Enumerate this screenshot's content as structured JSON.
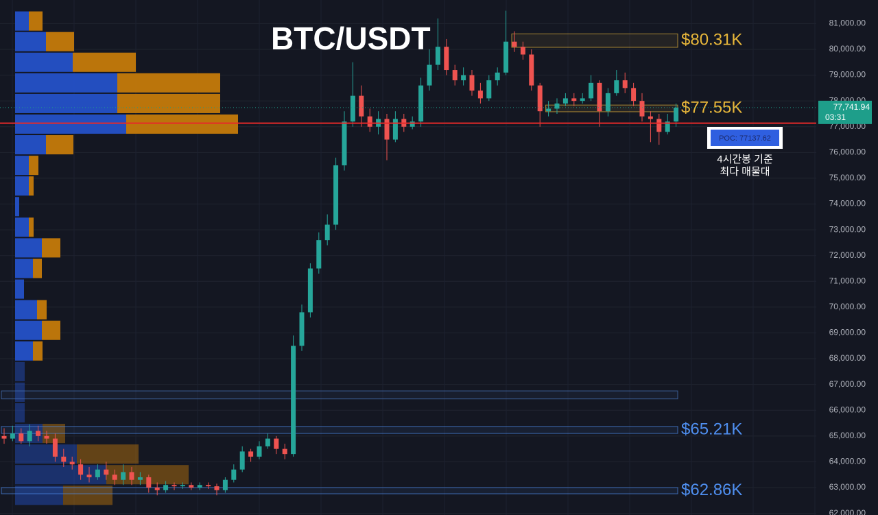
{
  "chart_data": {
    "type": "candlestick",
    "title": "BTC/USDT",
    "ylim": [
      61936,
      81915
    ],
    "yticks": [
      {
        "value": 62000,
        "label": "62,000.00"
      },
      {
        "value": 63000,
        "label": "63,000.00"
      },
      {
        "value": 64000,
        "label": "64,000.00"
      },
      {
        "value": 65000,
        "label": "65,000.00"
      },
      {
        "value": 66000,
        "label": "66,000.00"
      },
      {
        "value": 67000,
        "label": "67,000.00"
      },
      {
        "value": 68000,
        "label": "68,000.00"
      },
      {
        "value": 69000,
        "label": "69,000.00"
      },
      {
        "value": 70000,
        "label": "70,000.00"
      },
      {
        "value": 71000,
        "label": "71,000.00"
      },
      {
        "value": 72000,
        "label": "72,000.00"
      },
      {
        "value": 73000,
        "label": "73,000.00"
      },
      {
        "value": 74000,
        "label": "74,000.00"
      },
      {
        "value": 75000,
        "label": "75,000.00"
      },
      {
        "value": 76000,
        "label": "76,000.00"
      },
      {
        "value": 77000,
        "label": "77,000.00"
      },
      {
        "value": 78000,
        "label": "78,000.00"
      },
      {
        "value": 79000,
        "label": "79,000.00"
      },
      {
        "value": 80000,
        "label": "80,000.00"
      },
      {
        "value": 81000,
        "label": "81,000.00"
      }
    ],
    "up_color": "#26a69a",
    "down_color": "#ef5350",
    "open": [
      65000,
      64900,
      65100,
      64800,
      65200,
      65000,
      64900,
      64200,
      64000,
      63900,
      63500,
      63400,
      63700,
      63500,
      63300,
      63600,
      63300,
      63400,
      63000,
      62900,
      63100,
      63050,
      63100,
      63000,
      63100,
      63050,
      62900,
      63300,
      63700,
      64400,
      64200,
      64600,
      64900,
      64500,
      64300,
      68500,
      69800,
      71500,
      72600,
      73200,
      75500,
      77200,
      78200,
      77400,
      77000,
      77300,
      76500,
      77300,
      77000,
      77200,
      78600,
      79400,
      80100,
      79200,
      78800,
      79000,
      78400,
      78100,
      78800,
      79100,
      80300,
      80100,
      79800,
      78600,
      77600,
      77700,
      77900,
      78100,
      78000,
      78100,
      78700,
      77600,
      78300,
      78800,
      78500,
      78000,
      77400,
      77300,
      76800,
      77200
    ],
    "high": [
      65300,
      65400,
      65300,
      65450,
      65400,
      65200,
      65100,
      64500,
      64200,
      64100,
      63800,
      63900,
      64000,
      63700,
      63900,
      63800,
      63600,
      63500,
      63200,
      63250,
      63200,
      63200,
      63200,
      63200,
      63200,
      63150,
      63400,
      63900,
      64600,
      64500,
      64800,
      65100,
      65000,
      64700,
      68900,
      70100,
      71700,
      72900,
      73600,
      75800,
      77600,
      79500,
      78600,
      77700,
      77600,
      77500,
      77600,
      77500,
      77400,
      78900,
      80000,
      81200,
      80400,
      79400,
      79300,
      79200,
      78700,
      79000,
      79300,
      81500,
      80700,
      80300,
      80000,
      78700,
      78000,
      78100,
      78300,
      78300,
      78300,
      79000,
      78800,
      78500,
      79200,
      79100,
      78700,
      78300,
      77600,
      77500,
      77500,
      77900
    ],
    "low": [
      64700,
      64800,
      64700,
      64600,
      64800,
      64700,
      64000,
      63800,
      63700,
      63300,
      63200,
      63300,
      63300,
      63100,
      63100,
      63100,
      63100,
      62800,
      62700,
      62800,
      62900,
      62950,
      62900,
      62900,
      62950,
      62700,
      62800,
      63200,
      63600,
      64000,
      64100,
      64500,
      64300,
      64100,
      64200,
      68300,
      69600,
      71300,
      72400,
      73000,
      75300,
      77000,
      77000,
      76800,
      76700,
      75700,
      76400,
      76800,
      76900,
      77000,
      78400,
      79200,
      79000,
      78600,
      78600,
      78200,
      77900,
      78000,
      78600,
      79000,
      79900,
      79600,
      78400,
      77000,
      77400,
      77500,
      77800,
      77800,
      77900,
      78000,
      77000,
      77400,
      78200,
      78300,
      77800,
      77200,
      76400,
      76300,
      76700,
      77000
    ],
    "close": [
      64900,
      65100,
      64800,
      65200,
      65000,
      64900,
      64200,
      64000,
      63900,
      63500,
      63400,
      63700,
      63500,
      63300,
      63600,
      63300,
      63400,
      63000,
      62900,
      63100,
      63050,
      63100,
      63000,
      63100,
      63050,
      62900,
      63300,
      63700,
      64400,
      64200,
      64600,
      64900,
      64500,
      64300,
      68500,
      69800,
      71500,
      72600,
      73200,
      75500,
      77200,
      78200,
      77400,
      77000,
      77300,
      76500,
      77300,
      77000,
      77200,
      78600,
      79400,
      80100,
      79200,
      78800,
      79000,
      78400,
      78100,
      78800,
      79100,
      80300,
      80100,
      79800,
      78600,
      77600,
      77700,
      77900,
      78100,
      78000,
      78100,
      78700,
      77600,
      78300,
      78800,
      78500,
      78000,
      77400,
      77300,
      76800,
      77200,
      77740
    ],
    "volume_profile": {
      "levels": [
        81100,
        80300,
        79500,
        78700,
        77900,
        77100,
        76300,
        75500,
        74700,
        73900,
        73100,
        72300,
        71500,
        70700,
        69900,
        69100,
        68300,
        67500,
        66700,
        65900,
        65100,
        64300,
        63500,
        62700
      ],
      "bin_size": 800,
      "series": [
        {
          "name": "buy",
          "color": "#2451c8",
          "values": [
            20,
            45,
            84,
            149,
            149,
            162,
            45,
            20,
            20,
            6,
            20,
            39,
            26,
            13,
            32,
            39,
            26,
            14,
            14,
            14,
            40,
            90,
            133,
            70
          ]
        },
        {
          "name": "sell",
          "color": "#c47a0b",
          "values": [
            20,
            41,
            92,
            150,
            150,
            163,
            40,
            14,
            7,
            0,
            7,
            27,
            13,
            0,
            14,
            27,
            14,
            0,
            0,
            0,
            33,
            90,
            120,
            72
          ]
        }
      ]
    },
    "zones": [
      {
        "label": "$80.31K",
        "low": 80080,
        "high": 80600,
        "from": 60,
        "color": "#e8b73a"
      },
      {
        "label": "$77.55K",
        "low": 77580,
        "high": 77840,
        "from": 64,
        "color": "#e8b73a"
      },
      {
        "low": 66440,
        "high": 66750,
        "from": 0,
        "color": "#4a78c0"
      },
      {
        "label": "$65.21K",
        "low": 65100,
        "high": 65370,
        "from": 0,
        "color": "#4f8ff0"
      },
      {
        "label": "$62.86K",
        "low": 62760,
        "high": 63000,
        "from": 0,
        "color": "#4f8ff0"
      }
    ],
    "poc": {
      "value": 77137.62,
      "label": "POC: 77137.62",
      "color": "#e52a2a"
    },
    "poc_caption": [
      "4시간봉 기준",
      "최다 매물대"
    ],
    "last_price": {
      "value": 77741.94,
      "label": "77,741.94",
      "countdown": "03:31",
      "color": "#1e9e8a"
    }
  }
}
